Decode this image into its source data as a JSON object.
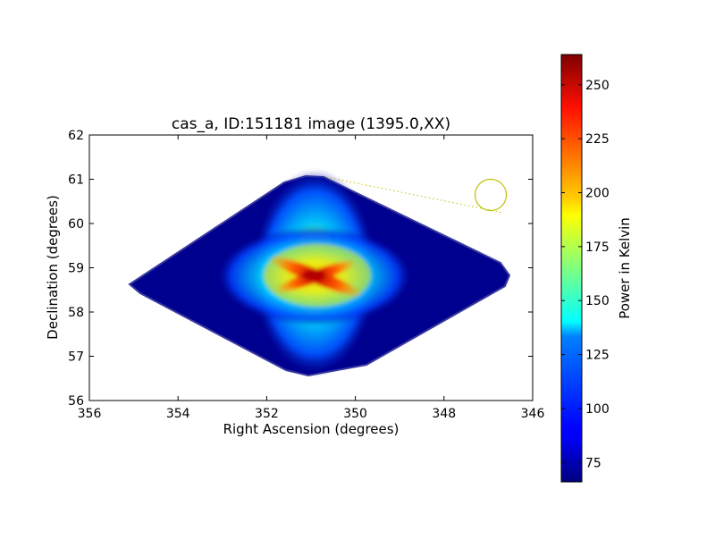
{
  "chart_data": {
    "type": "heatmap",
    "title": "cas_a, ID:151181 image (1395.0,XX)",
    "xlabel": "Right Ascension (degrees)",
    "ylabel": "Declination (degrees)",
    "xlim": [
      356,
      346
    ],
    "ylim": [
      56,
      62
    ],
    "xticks": [
      356,
      354,
      352,
      350,
      348,
      346
    ],
    "yticks": [
      56,
      57,
      58,
      59,
      60,
      61,
      62
    ],
    "colorbar": {
      "label": "Power in Kelvin",
      "range": [
        66,
        264
      ],
      "ticks": [
        75,
        100,
        125,
        150,
        175,
        200,
        225,
        250
      ],
      "colormap": "jet"
    },
    "coverage_region": {
      "description_points_radec": [
        [
          355.1,
          58.65
        ],
        [
          350.7,
          61.05
        ],
        [
          346.6,
          58.85
        ],
        [
          351.2,
          56.6
        ]
      ],
      "background_kelvin": 66
    },
    "source": {
      "name": "cas_a",
      "center_radec": [
        351.0,
        58.8
      ],
      "peak_kelvin": 264
    },
    "beam_marker": {
      "center_radec": [
        346.95,
        60.65
      ],
      "radius_deg": 0.35,
      "color": "#bfbf00"
    },
    "colors": {
      "marker": "#bfbf00",
      "axes": "#000000"
    }
  }
}
